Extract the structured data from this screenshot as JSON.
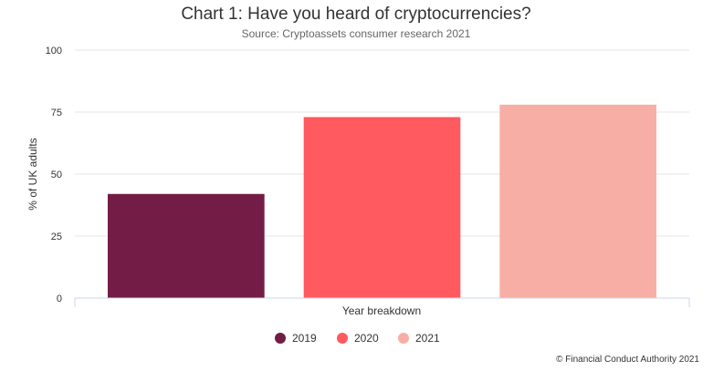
{
  "chart_data": {
    "type": "bar",
    "title": "Chart 1: Have you heard of cryptocurrencies?",
    "subtitle": "Source: Cryptoassets consumer research 2021",
    "xlabel": "Year breakdown",
    "ylabel": "% of UK adults",
    "ylim": [
      0,
      100
    ],
    "yticks": [
      "0",
      "25",
      "50",
      "75",
      "100"
    ],
    "grid": true,
    "legend_position": "bottom-center",
    "series": [
      {
        "name": "2019",
        "value": 42,
        "color": "#731c45"
      },
      {
        "name": "2020",
        "value": 73,
        "color": "#ff5a5f"
      },
      {
        "name": "2021",
        "value": 78,
        "color": "#f7aea5"
      }
    ],
    "credit": "© Financial Conduct Authority 2021"
  }
}
